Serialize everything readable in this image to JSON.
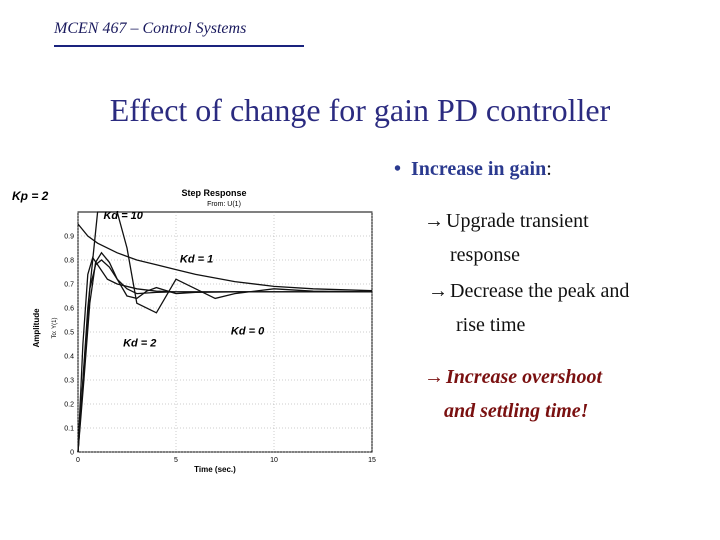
{
  "header": {
    "course": "MCEN 467 – Control Systems"
  },
  "slide": {
    "title": "Effect of change for gain PD controller",
    "bullet_label": "Increase in gain",
    "bullet_colon": ":",
    "points": [
      {
        "arrow": "→",
        "lines": [
          "Upgrade transient",
          "response"
        ]
      },
      {
        "arrow": "→",
        "lines": [
          "Decrease the peak and",
          "rise time"
        ]
      }
    ],
    "warning": {
      "arrow": "→",
      "lines": [
        "Increase overshoot",
        "and settling time!"
      ]
    }
  },
  "chart_data": {
    "type": "line",
    "title": "Step Response",
    "subtitle": "From: U(1)",
    "ylabel": "Amplitude",
    "ylabel2": "To: Y(1)",
    "xlabel": "Time (sec.)",
    "kp_label": "Kp = 2",
    "xlim": [
      0,
      15
    ],
    "ylim": [
      0,
      1
    ],
    "x_ticks": [
      "0",
      "5",
      "10",
      "15"
    ],
    "y_ticks": [
      "0",
      "0.1",
      "0.2",
      "0.3",
      "0.4",
      "0.5",
      "0.6",
      "0.7",
      "0.8",
      "0.9"
    ],
    "series": [
      {
        "name": "Kd = 10",
        "x": [
          0,
          0.25,
          0.5,
          0.75,
          1,
          1.5,
          2,
          2.5,
          3,
          4,
          5,
          6,
          8,
          10,
          12,
          15
        ],
        "y": [
          0,
          0.45,
          0.74,
          0.81,
          0.78,
          0.72,
          0.7,
          0.69,
          0.68,
          0.67,
          0.667,
          0.667,
          0.667,
          0.667,
          0.667,
          0.667
        ]
      },
      {
        "name": "Kd = 1",
        "x": [
          0,
          0.3,
          0.6,
          0.9,
          1.2,
          1.6,
          2,
          2.5,
          3,
          3.5,
          4,
          5,
          6,
          8,
          10,
          15
        ],
        "y": [
          0,
          0.3,
          0.62,
          0.79,
          0.83,
          0.79,
          0.72,
          0.65,
          0.64,
          0.67,
          0.685,
          0.66,
          0.665,
          0.667,
          0.667,
          0.667
        ]
      },
      {
        "name": "Kd = 2",
        "x": [
          0,
          0.3,
          0.6,
          0.9,
          1.2,
          1.6,
          2,
          2.5,
          3,
          4,
          5,
          6,
          8,
          10,
          15
        ],
        "y": [
          0,
          0.35,
          0.68,
          0.78,
          0.8,
          0.77,
          0.72,
          0.68,
          0.66,
          0.665,
          0.667,
          0.667,
          0.667,
          0.667,
          0.667
        ]
      },
      {
        "name": "Kd = 0",
        "x": [
          0,
          0.5,
          1,
          1.5,
          2,
          2.5,
          3,
          4,
          5,
          6,
          7,
          8,
          10,
          12,
          15
        ],
        "y": [
          0,
          0.6,
          1,
          1.2,
          1.12,
          0.85,
          0.62,
          0.58,
          0.72,
          0.68,
          0.64,
          0.66,
          0.68,
          0.67,
          0.667
        ]
      },
      {
        "name": "",
        "x": [
          0,
          0.5,
          1,
          2,
          3,
          4,
          5,
          6,
          8,
          10,
          12,
          15
        ],
        "y": [
          0.95,
          0.9,
          0.87,
          0.83,
          0.8,
          0.78,
          0.76,
          0.74,
          0.71,
          0.69,
          0.68,
          0.672
        ]
      }
    ],
    "curve_labels": [
      {
        "text": "Kd = 10",
        "x": 1.3,
        "y": 0.97
      },
      {
        "text": "Kd = 1",
        "x": 5.2,
        "y": 0.79
      },
      {
        "text": "Kd = 2",
        "x": 2.3,
        "y": 0.44
      },
      {
        "text": "Kd = 0",
        "x": 7.8,
        "y": 0.49
      }
    ]
  }
}
